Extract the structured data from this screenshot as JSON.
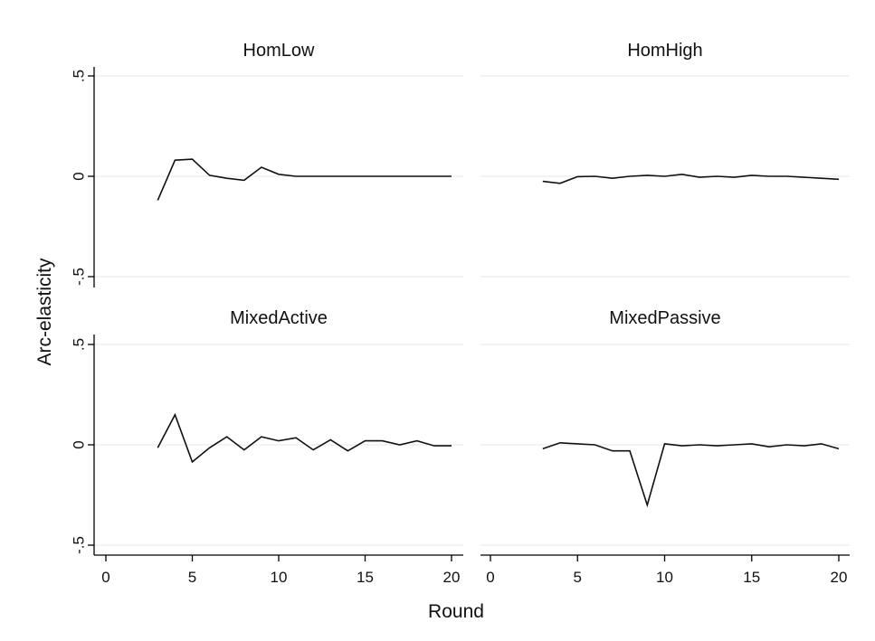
{
  "colors": {
    "background": "#ffffff",
    "grid": "#e6eef0",
    "axis": "#000000",
    "line": "#111111"
  },
  "chart_data": {
    "type": "line",
    "layout": "2x2 panels",
    "xlabel": "Round",
    "ylabel": "Arc-elasticity",
    "xlim": [
      0,
      20
    ],
    "ylim": [
      -0.5,
      0.5
    ],
    "xticks": [
      0,
      5,
      10,
      15,
      20
    ],
    "xtick_labels": [
      "0",
      "5",
      "10",
      "15",
      "20"
    ],
    "yticks": [
      0.5,
      0,
      -0.5
    ],
    "ytick_labels": [
      ".5",
      "0",
      "-.5"
    ],
    "grid": true,
    "legend": "none",
    "x": [
      3,
      4,
      5,
      6,
      7,
      8,
      9,
      10,
      11,
      12,
      13,
      14,
      15,
      16,
      17,
      18,
      19,
      20
    ],
    "panels": [
      {
        "title": "HomLow",
        "values": [
          -0.12,
          0.08,
          0.085,
          0.005,
          -0.01,
          -0.02,
          0.045,
          0.01,
          0.0,
          0.0,
          0.0,
          0.0,
          0.0,
          0.0,
          0.0,
          0.0,
          0.0,
          0.0
        ]
      },
      {
        "title": "HomHigh",
        "values": [
          -0.025,
          -0.035,
          -0.002,
          0.0,
          -0.01,
          0.0,
          0.005,
          0.0,
          0.01,
          -0.005,
          0.0,
          -0.005,
          0.005,
          0.0,
          0.0,
          -0.005,
          -0.01,
          -0.015
        ]
      },
      {
        "title": "MixedActive",
        "values": [
          -0.015,
          0.15,
          -0.085,
          -0.015,
          0.04,
          -0.025,
          0.04,
          0.02,
          0.035,
          -0.025,
          0.025,
          -0.03,
          0.02,
          0.02,
          0.0,
          0.02,
          -0.005,
          -0.005
        ]
      },
      {
        "title": "MixedPassive",
        "values": [
          -0.02,
          0.01,
          0.005,
          0.0,
          -0.03,
          -0.03,
          -0.3,
          0.005,
          -0.005,
          0.0,
          -0.005,
          0.0,
          0.005,
          -0.01,
          0.0,
          -0.005,
          0.005,
          -0.02
        ]
      }
    ]
  }
}
